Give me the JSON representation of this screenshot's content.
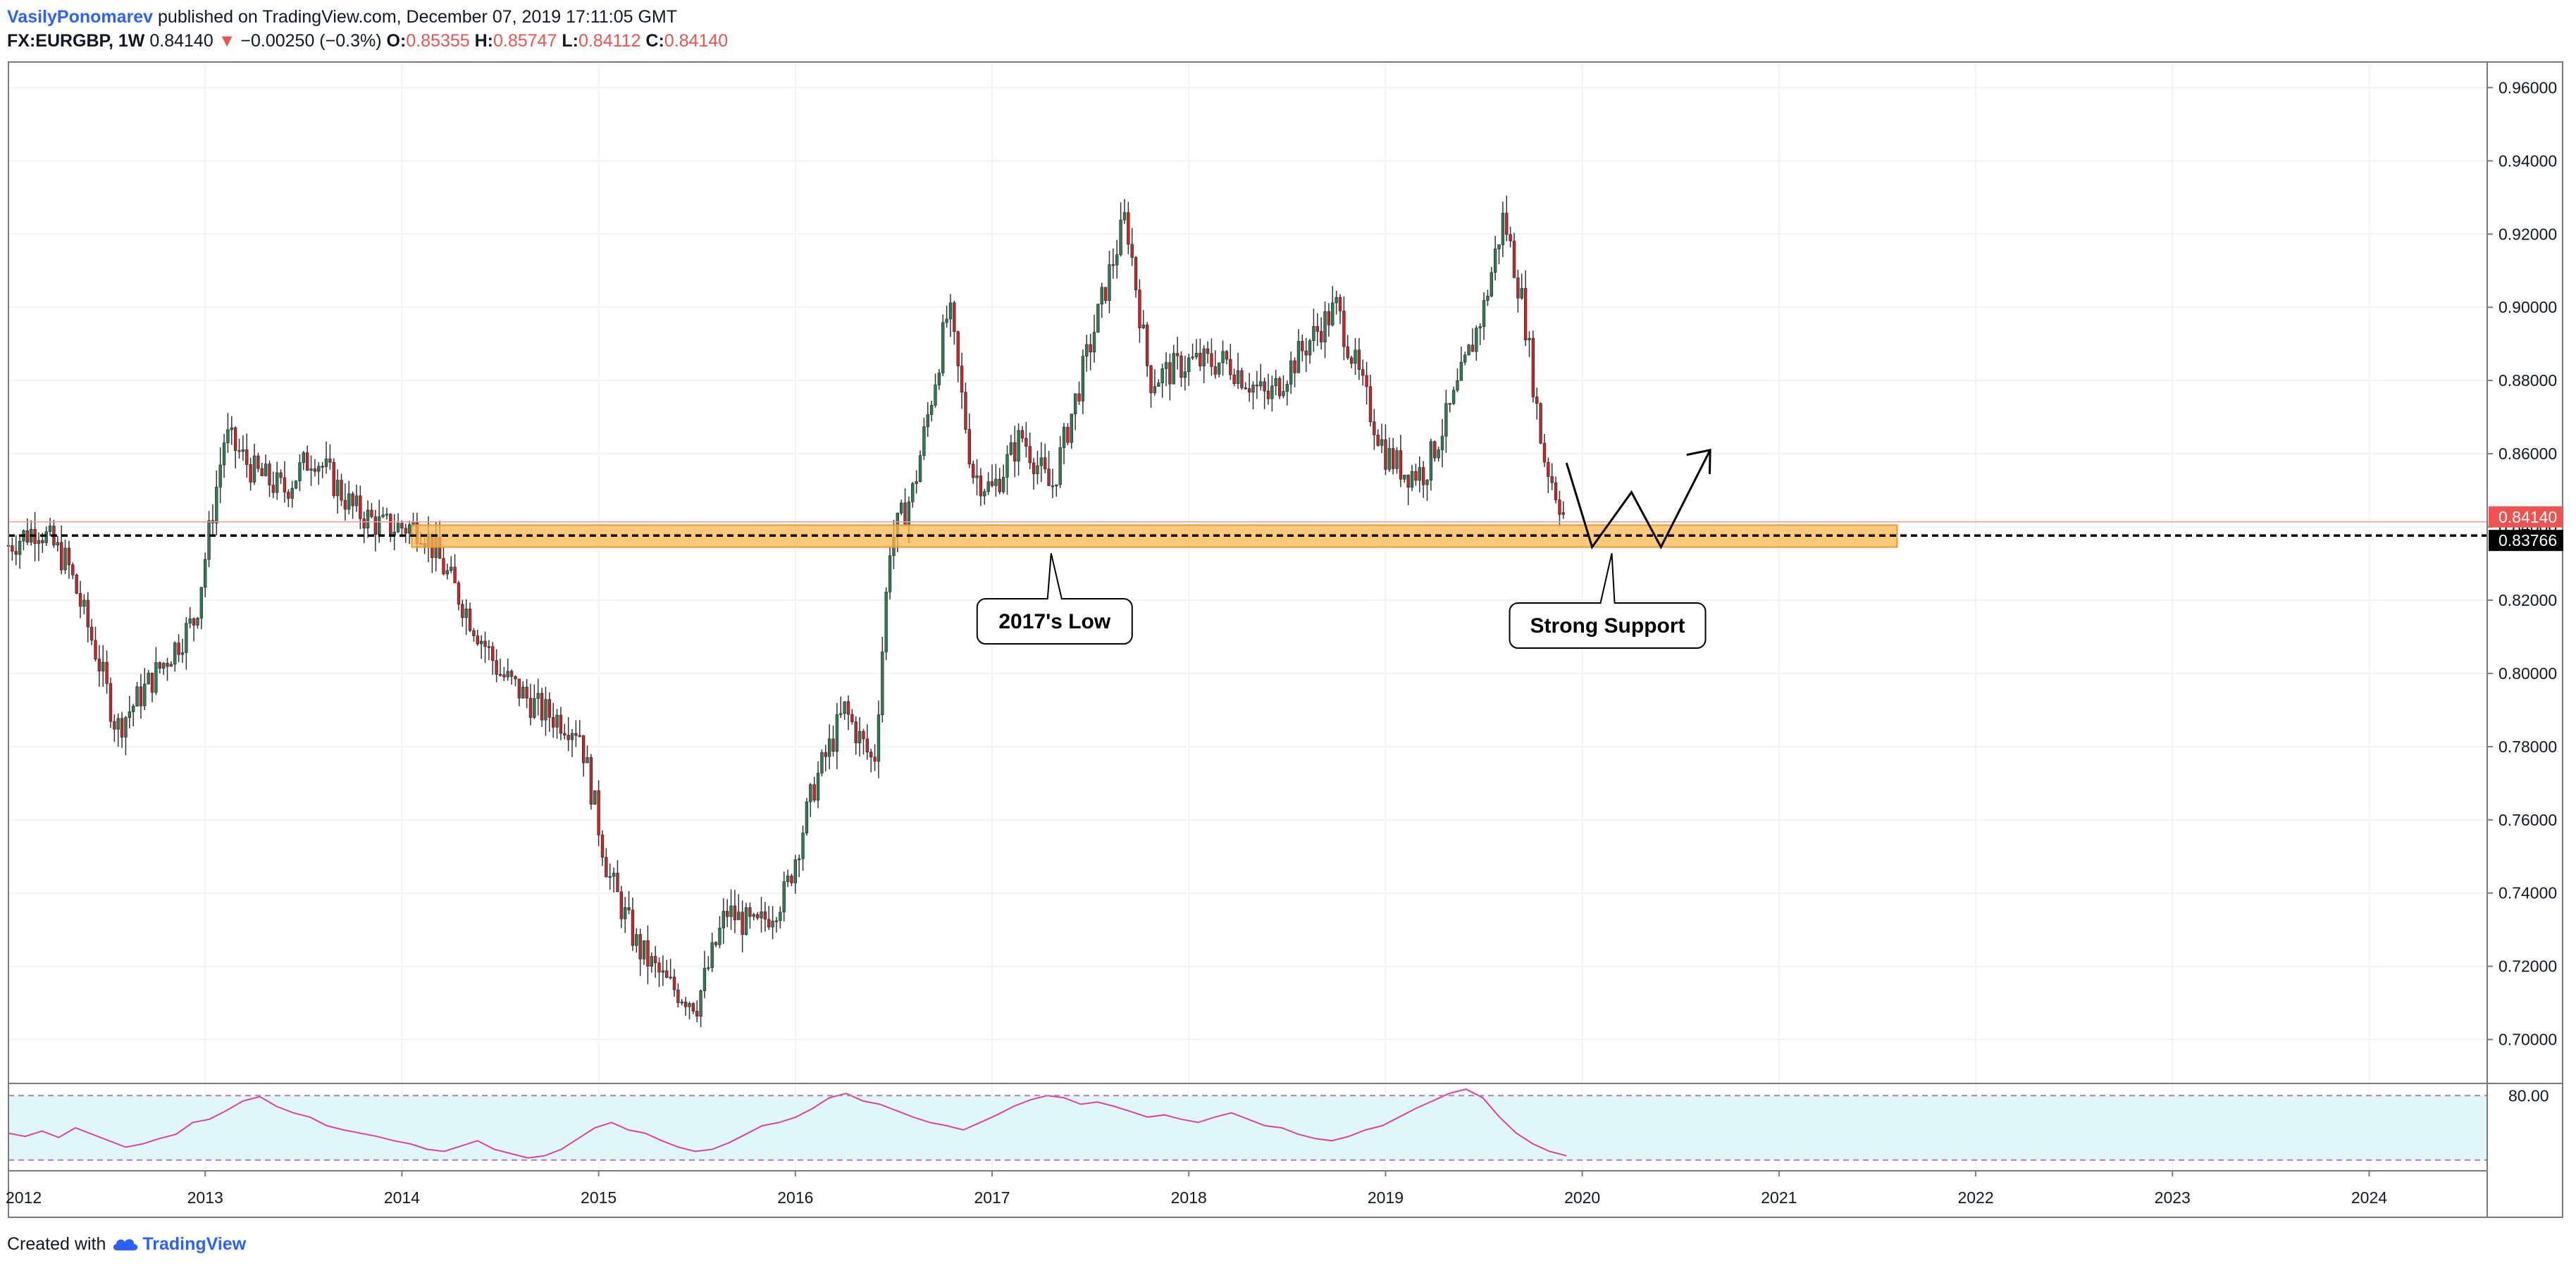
{
  "header": {
    "author": "VasilyPonomarev",
    "published_text": "published on TradingView.com, December 07, 2019 17:11:05 GMT",
    "symbol": "FX:EURGBP, 1W",
    "last_price": "0.84140",
    "change_arrow": "▼",
    "change": "−0.00250 (−0.3%)",
    "open_label": "O:",
    "open_value": "0.85355",
    "high_label": "H:",
    "high_value": "0.85747",
    "low_label": "L:",
    "low_value": "0.84112",
    "close_label": "C:",
    "close_value": "0.84140"
  },
  "footer": {
    "created_with": "Created with",
    "brand": "TradingView"
  },
  "annotations": {
    "low_2017": "2017's Low",
    "strong_support": "Strong Support"
  },
  "price_labels": {
    "last": "0.84140",
    "support": "0.83766"
  },
  "rsi": {
    "upper_label": "80.00"
  },
  "colors": {
    "up": "#26a69a",
    "down": "#ef5350",
    "candle_up_body": "#2e7d52",
    "candle_down_body": "#c62828",
    "support_zone": "#ffb74d",
    "rsi_line": "#e040a0",
    "rsi_band": "#e0f7fa",
    "accent": "#2962ff"
  },
  "chart_data": [
    {
      "type": "candlestick",
      "symbol": "EURGBP",
      "timeframe": "1W",
      "x_ticks": [
        "2012",
        "2013",
        "2014",
        "2015",
        "2016",
        "2017",
        "2018",
        "2019",
        "2020",
        "2021",
        "2022",
        "2023",
        "2024"
      ],
      "y_ticks": [
        "0.96000",
        "0.94000",
        "0.92000",
        "0.90000",
        "0.88000",
        "0.86000",
        "0.84000",
        "0.82000",
        "0.80000",
        "0.78000",
        "0.76000",
        "0.74000",
        "0.72000",
        "0.70000"
      ],
      "ylim": [
        0.688,
        0.967
      ],
      "xlim": [
        2012.0,
        2024.6
      ],
      "grid": true,
      "price_path": {
        "t": [
          2012.0,
          2012.15,
          2012.3,
          2012.45,
          2012.55,
          2012.75,
          2012.95,
          2013.1,
          2013.25,
          2013.4,
          2013.55,
          2013.75,
          2013.9,
          2014.1,
          2014.3,
          2014.5,
          2014.7,
          2014.9,
          2015.05,
          2015.2,
          2015.35,
          2015.5,
          2015.65,
          2015.8,
          2015.95,
          2016.1,
          2016.25,
          2016.4,
          2016.48,
          2016.6,
          2016.78,
          2016.9,
          2017.0,
          2017.15,
          2017.3,
          2017.45,
          2017.6,
          2017.68,
          2017.8,
          2018.0,
          2018.2,
          2018.4,
          2018.6,
          2018.75,
          2018.9,
          2019.0,
          2019.1,
          2019.2,
          2019.35,
          2019.5,
          2019.6,
          2019.7,
          2019.8,
          2019.92
        ],
        "price": [
          0.835,
          0.84,
          0.83,
          0.805,
          0.785,
          0.8,
          0.815,
          0.865,
          0.855,
          0.85,
          0.86,
          0.845,
          0.84,
          0.84,
          0.82,
          0.8,
          0.79,
          0.785,
          0.745,
          0.725,
          0.715,
          0.71,
          0.735,
          0.73,
          0.74,
          0.77,
          0.79,
          0.775,
          0.835,
          0.85,
          0.9,
          0.855,
          0.85,
          0.865,
          0.85,
          0.88,
          0.91,
          0.925,
          0.88,
          0.885,
          0.885,
          0.875,
          0.89,
          0.9,
          0.875,
          0.86,
          0.855,
          0.855,
          0.875,
          0.9,
          0.925,
          0.9,
          0.86,
          0.8414
        ]
      },
      "annotations": [
        {
          "text": "2017's Low",
          "x": 2017.3,
          "y": 0.8355
        },
        {
          "text": "Strong Support",
          "x": 2020.15,
          "y": 0.8355
        }
      ],
      "support_zone": {
        "x_start": 2014.05,
        "x_end": 2021.6,
        "y_low": 0.8345,
        "y_high": 0.8405
      },
      "horizontal_line": {
        "y": 0.83766,
        "label": "0.83766"
      },
      "last_price": {
        "y": 0.8414,
        "label": "0.84140"
      },
      "projection_path": {
        "t": [
          2019.92,
          2020.05,
          2020.25,
          2020.4,
          2020.65
        ],
        "price": [
          0.8575,
          0.8345,
          0.8495,
          0.8345,
          0.861
        ]
      }
    },
    {
      "type": "line",
      "name": "RSI",
      "upper_band": 80,
      "lower_band": 20,
      "y_ticks": [
        "80.00"
      ],
      "ylim": [
        10,
        90
      ],
      "values": [
        45,
        42,
        47,
        41,
        50,
        44,
        38,
        32,
        35,
        40,
        44,
        55,
        58,
        66,
        75,
        79,
        70,
        64,
        60,
        52,
        48,
        45,
        42,
        38,
        35,
        30,
        28,
        33,
        38,
        30,
        26,
        22,
        24,
        30,
        40,
        50,
        55,
        48,
        45,
        38,
        32,
        28,
        30,
        36,
        44,
        52,
        55,
        60,
        68,
        78,
        82,
        75,
        72,
        66,
        60,
        55,
        52,
        48,
        55,
        62,
        70,
        76,
        80,
        78,
        72,
        74,
        70,
        65,
        60,
        62,
        58,
        55,
        60,
        64,
        58,
        52,
        50,
        44,
        40,
        38,
        42,
        48,
        52,
        60,
        68,
        75,
        82,
        86,
        78,
        60,
        45,
        35,
        28,
        24
      ]
    }
  ]
}
